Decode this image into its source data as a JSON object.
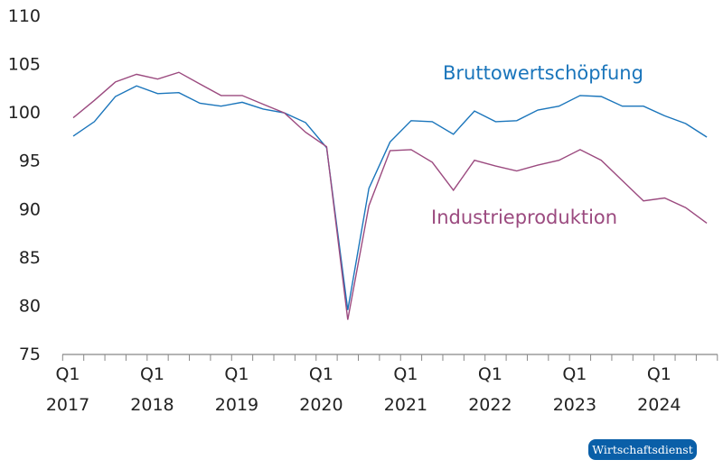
{
  "chart_data": {
    "type": "line",
    "title": "",
    "xlabel": "",
    "ylabel": "",
    "ylim": [
      75,
      110
    ],
    "yticks": [
      75,
      80,
      85,
      90,
      95,
      100,
      105,
      110
    ],
    "grid": false,
    "x": [
      "2017Q1",
      "2017Q2",
      "2017Q3",
      "2017Q4",
      "2018Q1",
      "2018Q2",
      "2018Q3",
      "2018Q4",
      "2019Q1",
      "2019Q2",
      "2019Q3",
      "2019Q4",
      "2020Q1",
      "2020Q2",
      "2020Q3",
      "2020Q4",
      "2021Q1",
      "2021Q2",
      "2021Q3",
      "2021Q4",
      "2022Q1",
      "2022Q2",
      "2022Q3",
      "2022Q4",
      "2023Q1",
      "2023Q2",
      "2023Q3",
      "2023Q4",
      "2024Q1",
      "2024Q2",
      "2024Q3"
    ],
    "xtick_labels": [
      {
        "q": "Q1",
        "year": "2017"
      },
      {
        "q": "Q1",
        "year": "2018"
      },
      {
        "q": "Q1",
        "year": "2019"
      },
      {
        "q": "Q1",
        "year": "2020"
      },
      {
        "q": "Q1",
        "year": "2021"
      },
      {
        "q": "Q1",
        "year": "2022"
      },
      {
        "q": "Q1",
        "year": "2023"
      },
      {
        "q": "Q1",
        "year": "2024"
      }
    ],
    "series": [
      {
        "name": "Bruttowertschöpfung",
        "color": "#1a75bb",
        "values": [
          97.5,
          99.0,
          101.6,
          102.7,
          101.9,
          102.0,
          100.9,
          100.6,
          101.0,
          100.3,
          99.9,
          98.9,
          96.3,
          79.5,
          92.1,
          96.9,
          99.1,
          99.0,
          97.7,
          100.1,
          99.0,
          99.1,
          100.2,
          100.6,
          101.7,
          101.6,
          100.6,
          100.6,
          99.6,
          98.8,
          97.4
        ]
      },
      {
        "name": "Industrieproduktion",
        "color": "#9b4a7f",
        "values": [
          99.4,
          101.2,
          103.1,
          103.9,
          103.4,
          104.1,
          102.9,
          101.7,
          101.7,
          100.8,
          99.9,
          97.9,
          96.4,
          78.5,
          90.3,
          96.0,
          96.1,
          94.8,
          91.9,
          95.0,
          94.4,
          93.9,
          94.5,
          95.0,
          96.1,
          95.0,
          92.9,
          90.8,
          91.1,
          90.1,
          88.5
        ]
      }
    ],
    "legend": "inline labels"
  },
  "source_badge": "Wirtschaftsdienst"
}
